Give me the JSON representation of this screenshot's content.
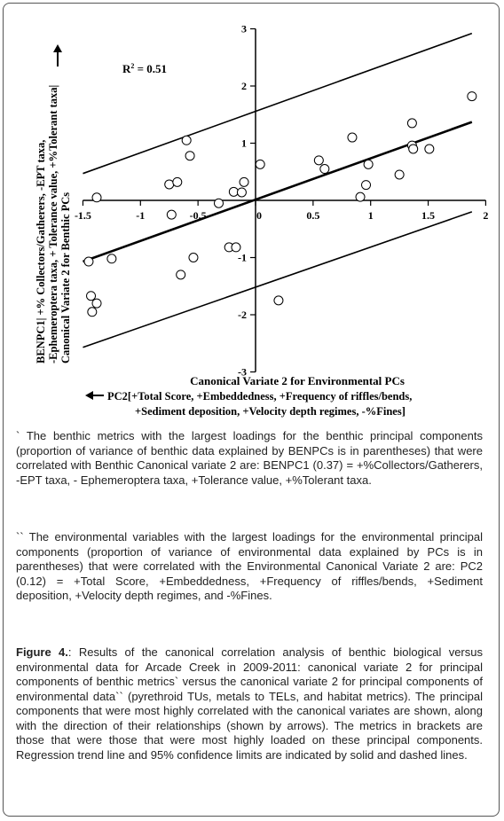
{
  "chart_data": {
    "type": "scatter",
    "annotation": "R² = 0.51",
    "r2_label": "R",
    "r2_sup": "2",
    "r2_value": " = 0.51",
    "xlabel": "Canonical Variate 2 for Environmental PCs",
    "ylabel_lines": [
      "BENPC1| +% Collectors/Gatherers, -EPT taxa,",
      "-Ephemeroptera taxa, + Tolerance value, +%Tolerant taxa|",
      "Canonical Variate 2 for Benthic PCs"
    ],
    "x_arrow_lines": [
      "PC2[+Total Score, +Embeddedness, +Frequency of riffles/bends,",
      "+Sediment deposition, +Velocity depth regimes, -%Fines]"
    ],
    "xlim": [
      -1.5,
      2
    ],
    "ylim": [
      -3,
      3
    ],
    "xticks": [
      "-1.5",
      "-1",
      "-0.5",
      "0",
      "0.5",
      "1",
      "1.5",
      "2"
    ],
    "yticks": [
      "3",
      "2",
      "1",
      "0",
      "-1",
      "-2",
      "-3"
    ],
    "xtick_values": [
      -1.5,
      -1,
      -0.5,
      0,
      0.5,
      1,
      1.5,
      2
    ],
    "ytick_values": [
      3,
      2,
      1,
      0,
      -1,
      -2,
      -3
    ],
    "points": [
      [
        -1.38,
        0.05
      ],
      [
        -1.45,
        -1.07
      ],
      [
        -1.43,
        -1.67
      ],
      [
        -1.42,
        -1.95
      ],
      [
        -1.38,
        -1.8
      ],
      [
        -1.25,
        -1.02
      ],
      [
        -0.75,
        0.28
      ],
      [
        -0.73,
        -0.25
      ],
      [
        -0.68,
        0.32
      ],
      [
        -0.65,
        -1.3
      ],
      [
        -0.6,
        1.05
      ],
      [
        -0.57,
        0.78
      ],
      [
        -0.54,
        -1.0
      ],
      [
        -0.32,
        -0.05
      ],
      [
        -0.23,
        -0.82
      ],
      [
        -0.19,
        0.15
      ],
      [
        -0.17,
        -0.82
      ],
      [
        -0.12,
        0.14
      ],
      [
        -0.1,
        0.32
      ],
      [
        0.04,
        0.63
      ],
      [
        0.2,
        -1.75
      ],
      [
        0.55,
        0.7
      ],
      [
        0.6,
        0.55
      ],
      [
        0.84,
        1.1
      ],
      [
        0.91,
        0.06
      ],
      [
        0.96,
        0.27
      ],
      [
        0.98,
        0.63
      ],
      [
        1.25,
        0.45
      ],
      [
        1.36,
        1.35
      ],
      [
        1.36,
        0.96
      ],
      [
        1.37,
        0.9
      ],
      [
        1.51,
        0.9
      ],
      [
        1.88,
        1.82
      ]
    ],
    "trend_line": {
      "x": [
        -1.5,
        1.88
      ],
      "y": [
        -1.07,
        1.37
      ]
    },
    "upper_limit": {
      "x": [
        -1.5,
        1.88
      ],
      "y": [
        0.47,
        2.92
      ]
    },
    "lower_limit": {
      "x": [
        -1.5,
        1.88
      ],
      "y": [
        -2.57,
        -0.2
      ]
    }
  },
  "captions": {
    "note1_mark": "`",
    "note1": " The benthic metrics with the largest loadings for the benthic principal components (proportion of variance of benthic data explained by BENPCs is in parentheses) that were correlated with Benthic Canonical variate 2 are: BENPC1 (0.37) = +%Collectors/Gatherers, -EPT taxa, - Ephemeroptera taxa, +Tolerance value, +%Tolerant taxa.",
    "note2_mark": "``",
    "note2": " The environmental variables with the largest loadings for the environmental principal components (proportion of variance of environmental data explained by PCs is in parentheses) that were correlated with the Environmental Canonical Variate 2 are: PC2 (0.12) = +Total Score, +Embeddedness, +Frequency of riffles/bends, +Sediment deposition, +Velocity depth regimes, and -%Fines.",
    "figure_label": "Figure 4.",
    "figure_text": ": Results of the canonical correlation analysis of benthic biological versus environmental data for Arcade Creek in 2009-2011: canonical variate 2 for principal components of benthic metrics` versus the canonical variate 2 for principal components of environmental data`` (pyrethroid TUs, metals to TELs, and habitat metrics). The principal components that were most highly correlated with the canonical variates are shown, along with the direction of their relationships (shown by arrows). The metrics in brackets are those that were those that were most highly loaded on these principal components. Regression trend line and 95% confidence limits are indicated by solid and dashed lines."
  }
}
